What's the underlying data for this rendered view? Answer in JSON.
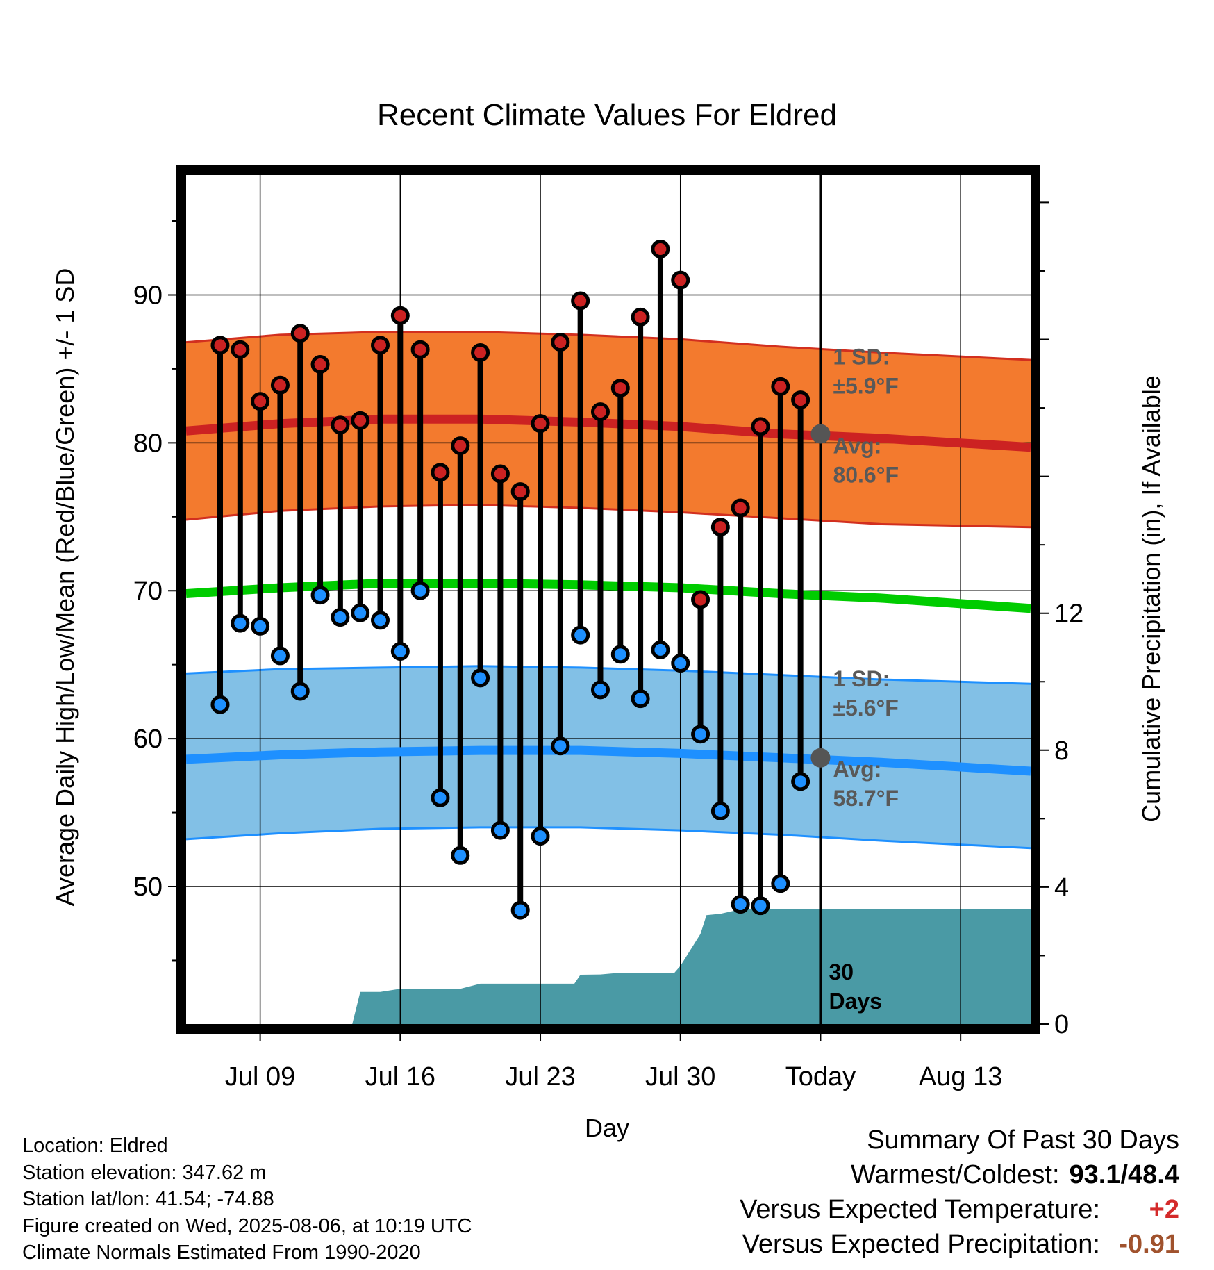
{
  "chart_data": {
    "type": "line",
    "title": "Recent Climate Values For Eldred",
    "xlabel": "Day",
    "ylabel": "Average Daily High/Low/Mean (Red/Blue/Green) +/- 1 SD",
    "y2label": "Cumulative Precipitation (in), If Available",
    "x_tick_labels": [
      "Jul 09",
      "Jul 16",
      "Jul 23",
      "Jul 30",
      "Today",
      "Aug 13"
    ],
    "x_tick_days": [
      9,
      16,
      23,
      30,
      37,
      44
    ],
    "xlim": [
      5.3,
      47.5
    ],
    "today_day": 37,
    "y_ticks": [
      50,
      60,
      70,
      80,
      90
    ],
    "ylim": [
      40.7,
      98.1
    ],
    "y2_ticks": [
      0,
      4,
      8,
      12
    ],
    "y2lim": [
      0,
      24.8
    ],
    "grid": true,
    "days": [
      7,
      8,
      9,
      10,
      11,
      12,
      13,
      14,
      15,
      16,
      17,
      18,
      19,
      20,
      21,
      22,
      23,
      24,
      25,
      26,
      27,
      28,
      29,
      30,
      31,
      32,
      33,
      34,
      35,
      36
    ],
    "series": [
      {
        "name": "High",
        "color": "#cc2222",
        "values": [
          86.6,
          86.3,
          82.8,
          83.9,
          87.4,
          85.3,
          81.2,
          81.5,
          86.6,
          88.6,
          86.3,
          78.0,
          79.8,
          86.1,
          77.9,
          76.7,
          81.3,
          86.8,
          89.6,
          82.1,
          83.7,
          88.5,
          93.1,
          91.0,
          69.4,
          74.3,
          75.6,
          81.1,
          83.8,
          82.9
        ]
      },
      {
        "name": "Low",
        "color": "#1e90ff",
        "values": [
          62.3,
          67.8,
          67.6,
          65.6,
          63.2,
          69.7,
          68.2,
          68.5,
          68.0,
          65.9,
          70.0,
          56.0,
          52.1,
          64.1,
          53.8,
          48.4,
          53.4,
          59.5,
          67.0,
          63.3,
          65.7,
          62.7,
          66.0,
          65.1,
          60.3,
          55.1,
          48.8,
          48.7,
          50.2,
          57.1
        ]
      },
      {
        "name": "Precip",
        "color": "#4a9aa5",
        "days": [
          5.3,
          9,
          10,
          11,
          12,
          13,
          13.6,
          14,
          15,
          16,
          17,
          18,
          19,
          20,
          21,
          22,
          23,
          24,
          24.7,
          25,
          26,
          27,
          28,
          29,
          29.7,
          30,
          31,
          31.3,
          32,
          33,
          34,
          35,
          36,
          37,
          47.5
        ],
        "values": [
          0,
          0,
          0,
          0,
          0,
          0,
          0,
          0.94,
          0.94,
          1.03,
          1.03,
          1.03,
          1.03,
          1.18,
          1.18,
          1.18,
          1.18,
          1.18,
          1.18,
          1.44,
          1.45,
          1.5,
          1.5,
          1.5,
          1.5,
          1.7,
          2.63,
          3.18,
          3.22,
          3.35,
          3.35,
          3.35,
          3.35,
          3.35,
          3.35
        ]
      }
    ],
    "normals": {
      "normal_high_days": [
        5.3,
        10,
        15,
        20,
        25,
        30,
        35,
        40,
        47.5
      ],
      "normal_high": [
        80.8,
        81.3,
        81.6,
        81.6,
        81.4,
        81.1,
        80.6,
        80.3,
        79.7
      ],
      "normal_high_upper": [
        86.8,
        87.3,
        87.5,
        87.5,
        87.3,
        87.0,
        86.5,
        86.1,
        85.6
      ],
      "normal_high_lower": [
        74.8,
        75.4,
        75.7,
        75.8,
        75.6,
        75.3,
        74.9,
        74.5,
        74.3
      ],
      "normal_mean": [
        69.8,
        70.2,
        70.5,
        70.5,
        70.4,
        70.2,
        69.8,
        69.5,
        68.8
      ],
      "normal_low": [
        58.6,
        58.9,
        59.1,
        59.2,
        59.2,
        59.0,
        58.7,
        58.4,
        57.8
      ],
      "normal_low_upper": [
        64.4,
        64.7,
        64.8,
        64.9,
        64.8,
        64.6,
        64.3,
        64.0,
        63.7
      ],
      "normal_low_lower": [
        53.2,
        53.6,
        53.9,
        54.0,
        54.0,
        53.8,
        53.5,
        53.1,
        52.6
      ]
    },
    "annotations": {
      "high_sd_label": "1 SD:",
      "high_sd_value": "±5.9°F",
      "high_avg_label": "Avg:",
      "high_avg_value": "80.6°F",
      "today_high_avg": 80.6,
      "low_sd_label": "1 SD:",
      "low_sd_value": "±5.6°F",
      "low_avg_label": "Avg:",
      "low_avg_value": "58.7°F",
      "today_low_avg": 58.7,
      "window_label_1": "30",
      "window_label_2": "Days"
    },
    "colors": {
      "high_band": "#f37a2e",
      "high_band_edge": "#d22f1f",
      "high_avg_line": "#cc2222",
      "mean_line": "#00cc00",
      "low_band": "#82c0e6",
      "low_band_edge": "#1e90ff",
      "low_avg_line": "#1e90ff",
      "precip_fill": "#4a9aa5",
      "annotation": "#595959",
      "high_dot": "#cc2222",
      "low_dot": "#1e90ff"
    }
  },
  "info": {
    "location": "Location: Eldred",
    "elevation": "Station elevation: 347.62 m",
    "latlon": "Station lat/lon: 41.54; -74.88",
    "created": "Figure created on Wed, 2025-08-06, at 10:19 UTC",
    "normals": "Climate Normals Estimated From 1990-2020"
  },
  "summary": {
    "heading": "Summary Of Past 30 Days",
    "warm_cold_label": "Warmest/Coldest:",
    "warm_cold_value": "93.1/48.4",
    "temp_label": "Versus Expected Temperature:",
    "temp_value": "+2",
    "precip_label": "Versus Expected Precipitation:",
    "precip_value": "-0.91"
  }
}
